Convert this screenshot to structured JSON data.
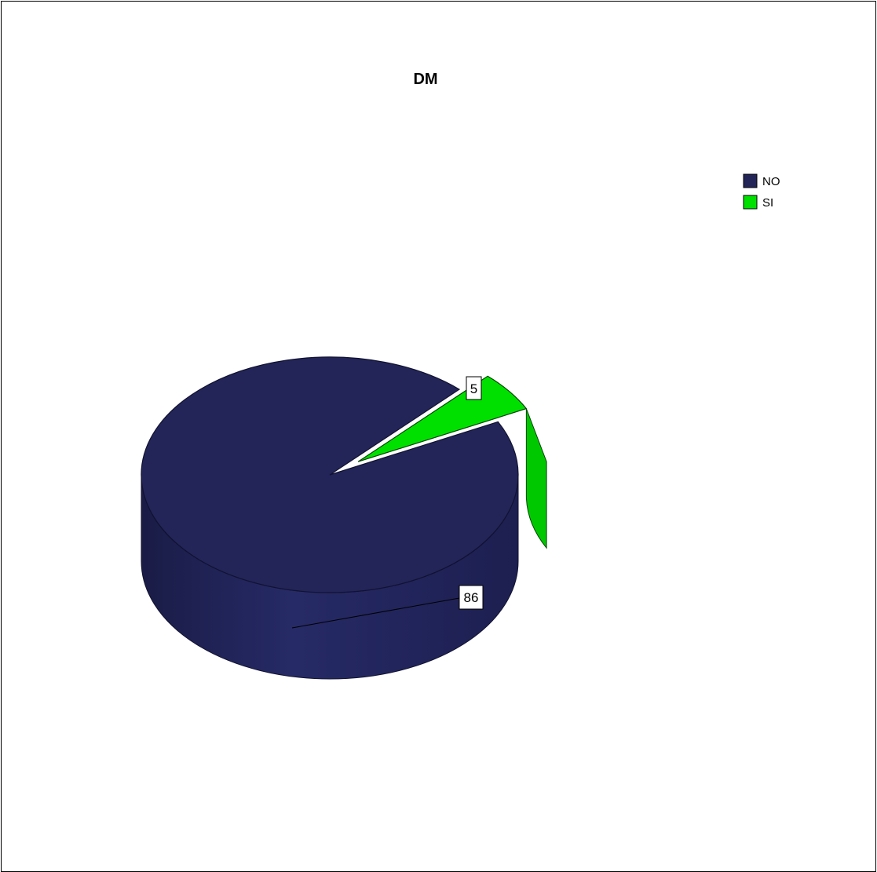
{
  "chart_data": {
    "type": "pie",
    "title": "DM",
    "categories": [
      "NO",
      "SI"
    ],
    "values": [
      86,
      5
    ],
    "series": [
      {
        "name": "NO",
        "value": 86,
        "color": "#232559"
      },
      {
        "name": "SI",
        "value": 5,
        "color": "#00e000"
      }
    ],
    "legend": "top-right",
    "data_labels": [
      "86",
      "5"
    ]
  },
  "colors": {
    "no": "#232559",
    "si": "#00e000"
  }
}
